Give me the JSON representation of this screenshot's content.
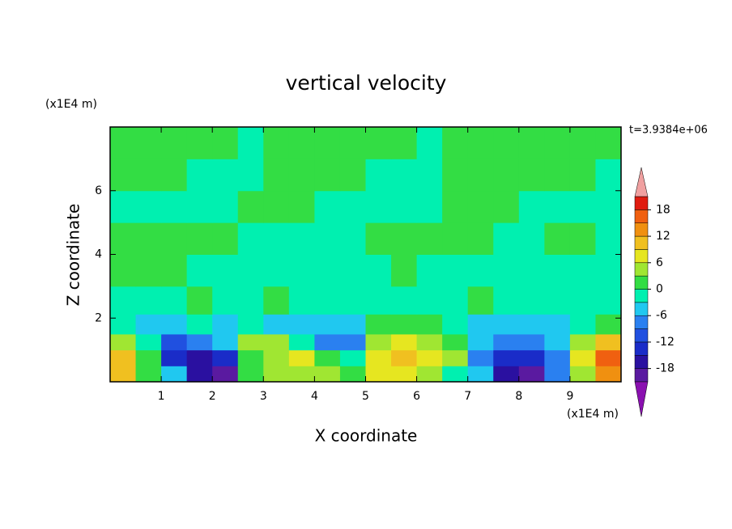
{
  "chart_data": {
    "type": "contour",
    "title": "vertical velocity",
    "xlabel": "X coordinate",
    "ylabel": "Z coordinate",
    "xunit": "(x1E4 m)",
    "yunit": "(x1E4 m)",
    "time_label": "t=3.9384e+06",
    "xlim": [
      0,
      10
    ],
    "ylim": [
      0,
      8
    ],
    "xticks": [
      1,
      2,
      3,
      4,
      5,
      6,
      7,
      8,
      9
    ],
    "yticks": [
      2,
      4,
      6
    ],
    "x": [
      0.25,
      0.75,
      1.25,
      1.75,
      2.25,
      2.75,
      3.25,
      3.75,
      4.25,
      4.75,
      5.25,
      5.75,
      6.25,
      6.75,
      7.25,
      7.75,
      8.25,
      8.75,
      9.25,
      9.75
    ],
    "y": [
      0.25,
      0.75,
      1.25,
      1.75,
      2.5,
      3.5,
      4.5,
      5.5,
      6.5,
      7.5
    ],
    "z": [
      [
        10,
        3,
        -3,
        -15,
        -18,
        2,
        6,
        4,
        6,
        3,
        8,
        7,
        4,
        0,
        -3,
        -15,
        -18,
        -6,
        6,
        15
      ],
      [
        12,
        2,
        -12,
        -15,
        -12,
        3,
        6,
        7,
        2,
        0,
        7,
        10,
        8,
        4,
        -6,
        -12,
        -14,
        -6,
        9,
        16
      ],
      [
        6,
        0,
        -9,
        -6,
        -3,
        5,
        4,
        0,
        -6,
        -6,
        5,
        8,
        6,
        2,
        -3,
        -6,
        -6,
        -3,
        6,
        10
      ],
      [
        0,
        -3,
        -3,
        0,
        -3,
        0,
        -3,
        -3,
        -3,
        -3,
        1,
        3,
        2,
        0,
        -3,
        -3,
        -3,
        -3,
        0,
        2
      ],
      [
        -1,
        -1,
        -1,
        1,
        -1,
        -1,
        1,
        -1,
        -1,
        -1,
        -1,
        -1,
        -1,
        -1,
        1,
        -1,
        -1,
        -1,
        -1,
        -1
      ],
      [
        1,
        1,
        1,
        -1,
        -1,
        -1,
        -1,
        -1,
        -1,
        -1,
        -1,
        1,
        -1,
        -1,
        -1,
        -1,
        -1,
        -1,
        -1,
        -1
      ],
      [
        1,
        1,
        1,
        1,
        1,
        -1,
        -1,
        -1,
        -1,
        -1,
        1,
        1,
        1,
        1,
        1,
        -1,
        -1,
        1,
        1,
        -1
      ],
      [
        -1,
        -1,
        -1,
        -1,
        -1,
        1,
        1,
        1,
        -1,
        -1,
        -1,
        -1,
        -1,
        1,
        1,
        1,
        -1,
        -1,
        -1,
        -1
      ],
      [
        1,
        1,
        1,
        -1,
        -1,
        -1,
        1,
        1,
        1,
        1,
        -1,
        -1,
        -1,
        1,
        1,
        1,
        1,
        1,
        1,
        -1
      ],
      [
        1,
        1,
        1,
        1,
        1,
        -1,
        1,
        1,
        1,
        1,
        1,
        1,
        -1,
        1,
        1,
        1,
        1,
        1,
        1,
        1
      ]
    ],
    "levels": [
      -21,
      -18,
      -15,
      -12,
      -9,
      -6,
      -3,
      0,
      3,
      6,
      9,
      12,
      15,
      18,
      21
    ],
    "colors": [
      "#5a1aa0",
      "#2a10a0",
      "#1a2cc8",
      "#2050e0",
      "#2a80f0",
      "#20c8f0",
      "#00f0b0",
      "#33dd44",
      "#a0e632",
      "#e6e620",
      "#f0c020",
      "#f09010",
      "#f06010",
      "#e01c10"
    ],
    "under_color": "#8a10b0",
    "over_color": "#f0a0a0",
    "colorbar_ticks": [
      -18,
      -12,
      -6,
      0,
      6,
      12,
      18
    ]
  }
}
